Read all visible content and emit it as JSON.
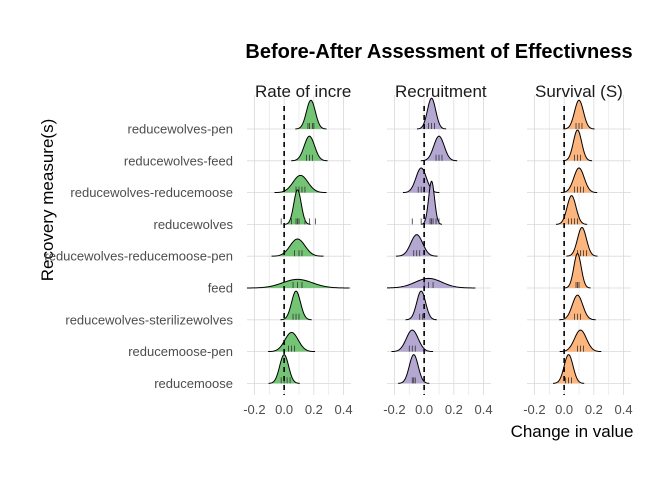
{
  "chart_data": {
    "type": "ridgeline",
    "title": "Before-After Assessment of Effectivness",
    "xlabel": "Change in value",
    "ylabel": "Recovery measure(s)",
    "xlim": [
      -0.25,
      0.45
    ],
    "x_ticks": [
      -0.2,
      0.0,
      0.2,
      0.4
    ],
    "x_tick_labels": [
      "-0.2",
      "0.0",
      "0.2",
      "0.4"
    ],
    "reference_line_x": 0,
    "grid": true,
    "categories": [
      "reducewolves-pen",
      "reducewolves-feed",
      "reducewolves-reducemoose",
      "reducewolves",
      "reducewolves-reducemoose-pen",
      "feed",
      "reducewolves-sterilizewolves",
      "reducemoose-pen",
      "reducemoose"
    ],
    "panels": [
      {
        "strip_label": "Rate of increa",
        "color": "#74c476",
        "distributions": [
          {
            "category": "reducewolves-pen",
            "mean": 0.18,
            "sd": 0.03,
            "rug": [
              0.16,
              0.17,
              0.19,
              0.2
            ]
          },
          {
            "category": "reducewolves-feed",
            "mean": 0.17,
            "sd": 0.035,
            "rug": [
              0.15,
              0.17,
              0.19
            ]
          },
          {
            "category": "reducewolves-reducemoose",
            "mean": 0.11,
            "sd": 0.05,
            "rug": [
              0.08,
              0.1,
              0.12,
              0.14
            ]
          },
          {
            "category": "reducewolves",
            "mean": 0.09,
            "sd": 0.025,
            "rug": [
              -0.02,
              0.05,
              0.08,
              0.09,
              0.1,
              0.14,
              0.17,
              0.21
            ]
          },
          {
            "category": "reducewolves-reducemoose-pen",
            "mean": 0.09,
            "sd": 0.05,
            "rug": [
              0.07,
              0.1,
              0.12
            ]
          },
          {
            "category": "feed",
            "mean": 0.09,
            "sd": 0.1,
            "rug": [
              0.06,
              0.09,
              0.12
            ]
          },
          {
            "category": "reducewolves-sterilizewolves",
            "mean": 0.08,
            "sd": 0.03,
            "rug": [
              0.06,
              0.08,
              0.1
            ]
          },
          {
            "category": "reducemoose-pen",
            "mean": 0.05,
            "sd": 0.045,
            "rug": [
              0.03,
              0.05,
              0.07
            ]
          },
          {
            "category": "reducemoose",
            "mean": 0.0,
            "sd": 0.03,
            "rug": [
              -0.02,
              0.0,
              0.02,
              0.04
            ]
          }
        ]
      },
      {
        "strip_label": "Recruitment (",
        "color": "#b4a7d2",
        "distributions": [
          {
            "category": "reducewolves-pen",
            "mean": 0.05,
            "sd": 0.028,
            "rug": [
              0.03,
              0.05,
              0.07
            ]
          },
          {
            "category": "reducewolves-feed",
            "mean": 0.1,
            "sd": 0.035,
            "rug": [
              0.08,
              0.1,
              0.12
            ]
          },
          {
            "category": "reducewolves-reducemoose",
            "mean": -0.02,
            "sd": 0.035,
            "rug": [
              -0.04,
              -0.02,
              0.0
            ]
          },
          {
            "category": "reducewolves",
            "mean": 0.05,
            "sd": 0.02,
            "rug": [
              -0.08,
              -0.02,
              0.04,
              0.05,
              0.06,
              0.08,
              0.1
            ]
          },
          {
            "category": "reducewolves-reducemoose-pen",
            "mean": -0.05,
            "sd": 0.04,
            "rug": [
              -0.07,
              -0.05,
              -0.03
            ]
          },
          {
            "category": "feed",
            "mean": 0.03,
            "sd": 0.09,
            "rug": [
              0.0,
              0.03,
              0.06
            ]
          },
          {
            "category": "reducewolves-sterilizewolves",
            "mean": -0.02,
            "sd": 0.03,
            "rug": [
              -0.03,
              -0.01,
              0.0
            ]
          },
          {
            "category": "reducemoose-pen",
            "mean": -0.08,
            "sd": 0.04,
            "rug": [
              -0.1,
              -0.08,
              -0.06
            ]
          },
          {
            "category": "reducemoose",
            "mean": -0.07,
            "sd": 0.03,
            "rug": [
              -0.08,
              -0.07,
              -0.06
            ]
          }
        ]
      },
      {
        "strip_label": "Survival (S)",
        "color": "#fdb57e",
        "distributions": [
          {
            "category": "reducewolves-pen",
            "mean": 0.1,
            "sd": 0.03,
            "rug": [
              0.08,
              0.1,
              0.12
            ]
          },
          {
            "category": "reducewolves-feed",
            "mean": 0.09,
            "sd": 0.028,
            "rug": [
              0.07,
              0.09,
              0.11
            ]
          },
          {
            "category": "reducewolves-reducemoose",
            "mean": 0.1,
            "sd": 0.035,
            "rug": [
              0.07,
              0.09,
              0.11,
              0.13
            ]
          },
          {
            "category": "reducewolves",
            "mean": 0.05,
            "sd": 0.03,
            "rug": [
              0.03,
              0.05,
              0.07,
              0.09
            ]
          },
          {
            "category": "reducewolves-reducemoose-pen",
            "mean": 0.12,
            "sd": 0.03,
            "rug": [
              0.09,
              0.11,
              0.13,
              0.15
            ]
          },
          {
            "category": "feed",
            "mean": 0.09,
            "sd": 0.025,
            "rug": [
              0.08,
              0.09,
              0.1
            ]
          },
          {
            "category": "reducewolves-sterilizewolves",
            "mean": 0.09,
            "sd": 0.035,
            "rug": [
              0.07,
              0.09,
              0.11
            ]
          },
          {
            "category": "reducemoose-pen",
            "mean": 0.11,
            "sd": 0.04,
            "rug": [
              0.09,
              0.11,
              0.13
            ]
          },
          {
            "category": "reducemoose",
            "mean": 0.03,
            "sd": 0.03,
            "rug": [
              0.01,
              0.03,
              0.05
            ]
          }
        ]
      }
    ]
  }
}
